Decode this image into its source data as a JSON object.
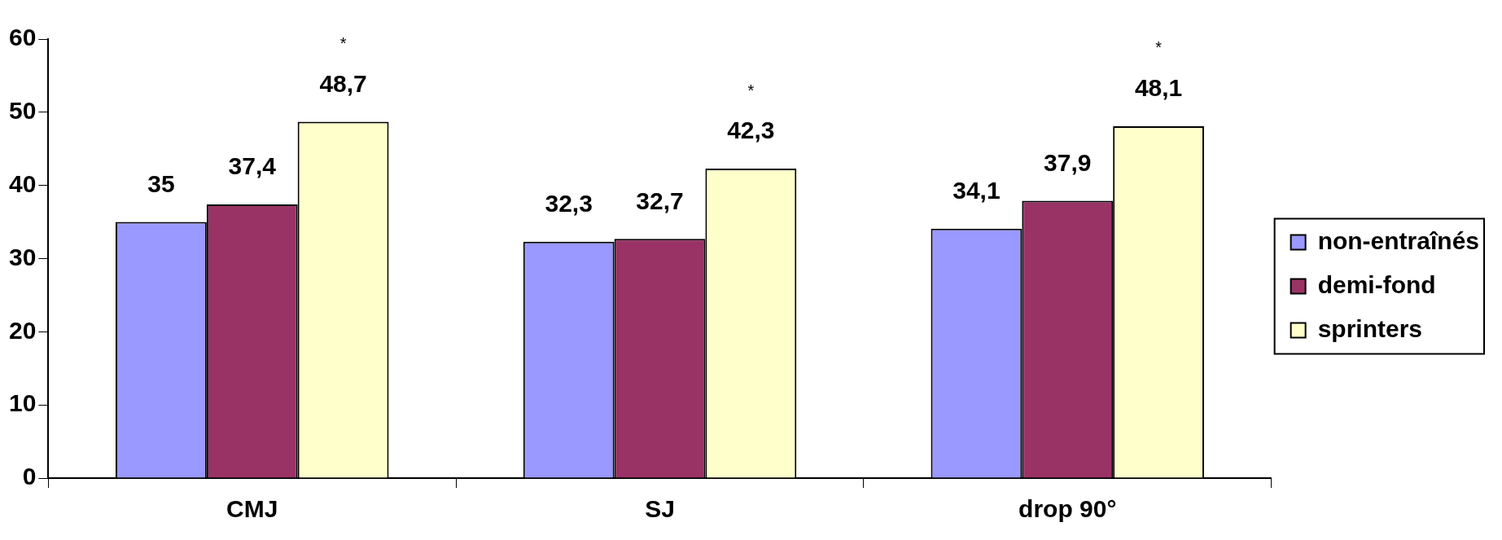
{
  "chart_data": {
    "type": "bar",
    "categories": [
      "CMJ",
      "SJ",
      "drop 90°"
    ],
    "series": [
      {
        "name": "non-entraînés",
        "color": "#9999ff",
        "values": [
          35,
          32.3,
          34.1
        ],
        "value_labels": [
          "35",
          "32,3",
          "34,1"
        ]
      },
      {
        "name": "demi-fond",
        "color": "#993366",
        "values": [
          37.4,
          32.7,
          37.9
        ],
        "value_labels": [
          "37,4",
          "32,7",
          "37,9"
        ]
      },
      {
        "name": "sprinters",
        "color": "#ffffcc",
        "values": [
          48.7,
          42.3,
          48.1
        ],
        "value_labels": [
          "48,7",
          "42,3",
          "48,1"
        ]
      }
    ],
    "ylim": [
      0,
      60
    ],
    "yticks": [
      0,
      10,
      20,
      30,
      40,
      50,
      60
    ],
    "grid": false,
    "legend": "right",
    "annotations": [
      "*",
      "*",
      "*"
    ]
  }
}
